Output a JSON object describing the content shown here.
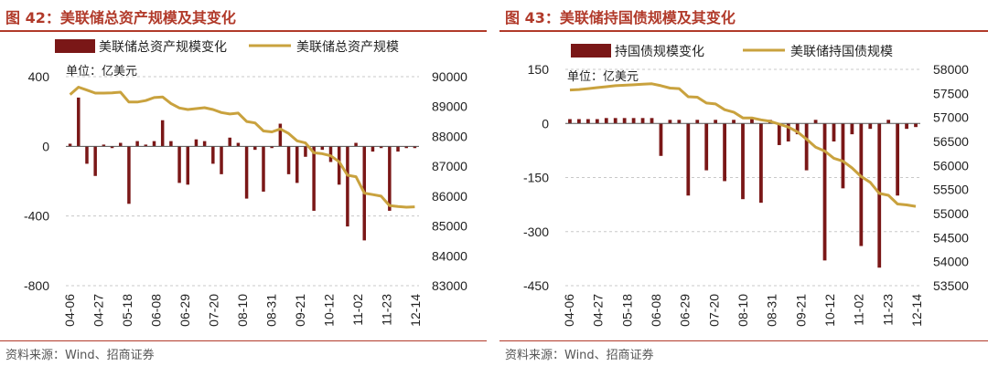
{
  "charts": [
    {
      "figure_title": "图 42：美联储总资产规模及其变化",
      "source": "资料来源：Wind、招商证券",
      "unit": "单位：亿美元",
      "legend_bar": "美联储总资产规模变化",
      "legend_line": "美联储总资产规模",
      "colors": {
        "bar": "#7a1717",
        "line": "#c9a23e",
        "grid": "#c8c8c8"
      }
    },
    {
      "figure_title": "图 43：美联储持国债规模及其变化",
      "source": "资料来源：Wind、招商证券",
      "unit": "单位：亿美元",
      "legend_bar": "持国债规模变化",
      "legend_line": "美联储持国债规模",
      "colors": {
        "bar": "#7a1717",
        "line": "#c9a23e",
        "grid": "#c8c8c8"
      }
    }
  ],
  "chart_data": [
    {
      "type": "bar+line",
      "title": "美联储总资产规模及其变化",
      "xlabel": "",
      "ylabel": "单位：亿美元",
      "x_tick_labels": [
        "04-06",
        "04-27",
        "05-18",
        "06-08",
        "06-29",
        "07-20",
        "08-10",
        "08-31",
        "09-21",
        "10-12",
        "11-02",
        "11-23",
        "12-14"
      ],
      "y_left": {
        "ylim": [
          -800,
          400
        ],
        "ticks": [
          400,
          0,
          -400,
          -800
        ],
        "grid": true
      },
      "y_right": {
        "ylim": [
          83000,
          90000
        ],
        "ticks": [
          90000,
          89000,
          88000,
          87000,
          86000,
          85000,
          84000,
          83000
        ]
      },
      "series": [
        {
          "name": "美联储总资产规模变化",
          "axis": "left",
          "kind": "bar",
          "values": [
            15,
            280,
            -100,
            -170,
            10,
            -10,
            20,
            -330,
            30,
            10,
            30,
            150,
            30,
            -210,
            -220,
            40,
            30,
            -100,
            -160,
            50,
            20,
            -300,
            -20,
            -260,
            -10,
            130,
            -160,
            -210,
            -60,
            -370,
            -20,
            -90,
            -220,
            -460,
            20,
            -540,
            -30,
            -10,
            -370,
            -30,
            -10,
            -10
          ]
        },
        {
          "name": "美联储总资产规模",
          "axis": "right",
          "kind": "line",
          "values": [
            89400,
            89650,
            89550,
            89450,
            89450,
            89460,
            89480,
            89150,
            89150,
            89200,
            89300,
            89320,
            89100,
            88950,
            88900,
            88930,
            88960,
            88900,
            88800,
            88750,
            88780,
            88500,
            88450,
            88180,
            88150,
            88250,
            88100,
            87850,
            87780,
            87450,
            87420,
            87350,
            87150,
            86700,
            86650,
            86100,
            86050,
            86000,
            85680,
            85650,
            85630,
            85640
          ]
        }
      ]
    },
    {
      "type": "bar+line",
      "title": "美联储持国债规模及其变化",
      "xlabel": "",
      "ylabel": "单位：亿美元",
      "x_tick_labels": [
        "04-06",
        "04-27",
        "05-18",
        "06-08",
        "06-29",
        "07-20",
        "08-10",
        "08-31",
        "09-21",
        "10-12",
        "11-02",
        "11-23",
        "12-14"
      ],
      "y_left": {
        "ylim": [
          -450,
          150
        ],
        "ticks": [
          150,
          0,
          -150,
          -300,
          -450
        ],
        "grid": true
      },
      "y_right": {
        "ylim": [
          53500,
          58000
        ],
        "ticks": [
          58000,
          57500,
          57000,
          56500,
          56000,
          55500,
          55000,
          54500,
          54000,
          53500
        ]
      },
      "series": [
        {
          "name": "持国债规模变化",
          "axis": "left",
          "kind": "bar",
          "values": [
            12,
            12,
            12,
            12,
            15,
            15,
            15,
            15,
            15,
            15,
            -90,
            10,
            10,
            -200,
            10,
            -130,
            10,
            -160,
            10,
            -210,
            15,
            -220,
            10,
            -60,
            -50,
            -30,
            -130,
            10,
            -380,
            -50,
            -180,
            -30,
            -340,
            -15,
            -400,
            10,
            -200,
            -15,
            -10
          ]
        },
        {
          "name": "美联储持国债规模",
          "axis": "right",
          "kind": "line",
          "values": [
            57570,
            57580,
            57600,
            57620,
            57640,
            57660,
            57670,
            57680,
            57690,
            57700,
            57660,
            57610,
            57600,
            57430,
            57420,
            57300,
            57280,
            57160,
            57110,
            56990,
            56990,
            56950,
            56920,
            56860,
            56800,
            56700,
            56550,
            56380,
            56300,
            56150,
            56090,
            55950,
            55770,
            55650,
            55420,
            55380,
            55200,
            55180,
            55150
          ]
        }
      ]
    }
  ]
}
